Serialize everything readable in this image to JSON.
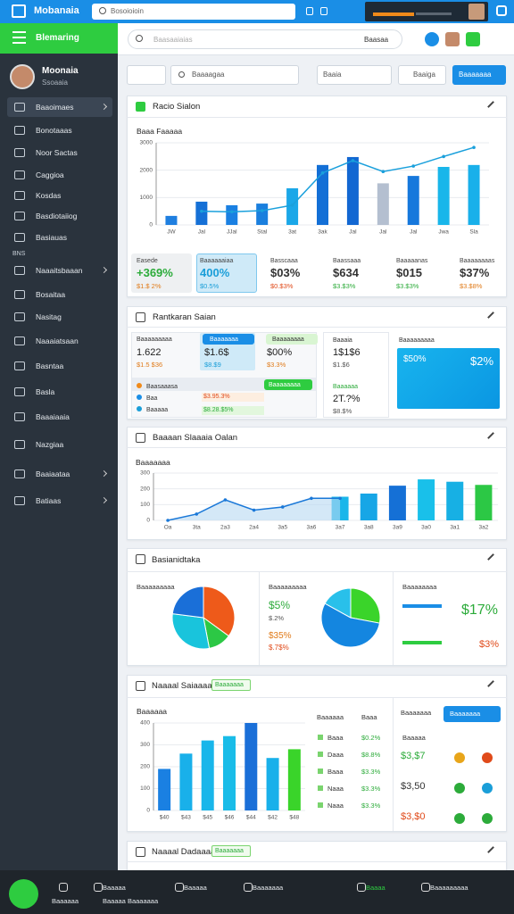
{
  "topbar": {
    "title": "Mobanaia",
    "search": "Bosoioioin"
  },
  "sidebar": {
    "header": "Blemaring",
    "user": {
      "name": "Moonaia",
      "role": "Ssoaaia"
    },
    "items": [
      "Baaoimaes",
      "Bonotaaas",
      "Noor Sactas",
      "Caggioa",
      "Kosdas",
      "Basdiotaiiog",
      "Basiauas",
      "Naaaitsbaaan",
      "Bosaitaa",
      "Nasitag",
      "Naaaiatsaan",
      "Basntaa",
      "Basla",
      "Baaaiaaia",
      "Nazgiaa",
      "Baaiaataa",
      "Batiaas"
    ],
    "section": "BNS"
  },
  "searchbar": {
    "placeholder": "Baasaaiaias",
    "filter": "Baasaa"
  },
  "toolbar": {
    "search": "Baaaagaa",
    "button1": "Baaia",
    "button2": "Baaiga",
    "primary": "Baaaaaaa"
  },
  "panels": [
    {
      "title": "Racio Sialon",
      "subtitle": "Baaa Faaaaa",
      "chart": {
        "categories": [
          "JW",
          "Jal",
          "JJal",
          "Stal",
          "3at",
          "3ak",
          "Jal",
          "Jal",
          "Jal",
          "Jwa",
          "Sla"
        ],
        "bars": [
          330,
          850,
          720,
          780,
          1340,
          2190,
          2480,
          1520,
          1790,
          2120,
          2190
        ],
        "colors": [
          "#1f7fe0",
          "#1570d6",
          "#1a80e2",
          "#1a7fde",
          "#1aa7e8",
          "#136fd6",
          "#1267d2",
          "#b4bfd0",
          "#1678dc",
          "#19b6ea",
          "#19b0ea"
        ],
        "line": [
          null,
          500,
          480,
          520,
          720,
          1900,
          2350,
          1950,
          2150,
          2500,
          2830
        ],
        "line_color": "#1aa0dc",
        "ylim": [
          0,
          3000
        ],
        "yticks": [
          0,
          1000,
          2000,
          3000
        ]
      },
      "stats": [
        {
          "label": "Easede",
          "value": "+369%",
          "sub": "$1.$ 2%"
        },
        {
          "label": "Baaaaaaiaa",
          "value": "400%",
          "sub": "$0.5%"
        },
        {
          "label": "Basscaaa",
          "value": "$03%",
          "sub": "$0.$3%"
        },
        {
          "label": "Baassaaa",
          "value": "$634",
          "sub": "$3.$3%"
        },
        {
          "label": "Baaaaanas",
          "value": "$015",
          "sub": "$3.$3%"
        },
        {
          "label": "Baaaaaaaas",
          "value": "$37%",
          "sub": "$3.$8%"
        }
      ]
    },
    {
      "title": "Rantkaran Saian",
      "cells": [
        {
          "label": "Baaaaaaaaa",
          "value": "1.622",
          "sub": "$1.5 $36"
        },
        {
          "label": "Baaaaaaa",
          "value": "$1.6$",
          "sub": "$8.$9"
        },
        {
          "label": "Baaaaaaaa",
          "value": "$00%",
          "sub": "$3.3%"
        }
      ],
      "list": {
        "items": [
          "Baasaaasa",
          "Baa",
          "Baaaaa"
        ],
        "badge": "Baaaaaaaa",
        "values": [
          "$3.95.3%",
          "$8.28.$5%"
        ]
      },
      "middle": {
        "label": "Baaaia",
        "value": "1$1$6",
        "sub": "$1.$6",
        "label2": "Baaaaaa",
        "value2": "2T.?%",
        "sub2": "$8.$%"
      },
      "right": {
        "label": "Baaaaaaaaa",
        "value": "$50%",
        "value2": "$2%"
      }
    },
    {
      "title": "Baaaan Slaaaia Oalan",
      "subtitle": "Baaaaaaa",
      "chart": {
        "categories": [
          "Oa",
          "3ta",
          "2a3",
          "2a4",
          "3a5",
          "3a6",
          "3a7",
          "3a8",
          "3a9",
          "3a0",
          "3a1",
          "3a2"
        ],
        "line": [
          0,
          40,
          130,
          65,
          85,
          140,
          140,
          null,
          null,
          null,
          null,
          null
        ],
        "line_color": "#1a78d8",
        "bars": [
          null,
          null,
          null,
          null,
          null,
          null,
          150,
          170,
          220,
          260,
          245,
          225
        ],
        "colors": [
          null,
          null,
          null,
          null,
          null,
          null,
          "#19b6ea",
          "#17a6e6",
          "#1570d6",
          "#19c0ea",
          "#17b0e4",
          "#2cc845"
        ],
        "ylim": [
          0,
          300
        ],
        "yticks": [
          0,
          100,
          200,
          300
        ]
      }
    },
    {
      "title": "Basianidtaka",
      "col1": "Baaaaaaaaa",
      "col2": "Baaaaaaaaa",
      "col3": "Baaaaaaaa",
      "pies": [
        {
          "values": [
            35,
            12,
            30,
            23
          ],
          "colors": [
            "#ee5a1a",
            "#2cc845",
            "#19c4dc",
            "#1a6fd8"
          ]
        },
        {
          "values": [
            28,
            55,
            17
          ],
          "colors": [
            "#3ad42a",
            "#1486e0",
            "#29c0ea"
          ]
        }
      ],
      "texts": {
        "a": "$5%",
        "b": "$.2%",
        "c": "$35%",
        "d": "$.7$%",
        "e": "$17%",
        "f": "$3%"
      }
    },
    {
      "title": "Naaaal Saiaaaaaa",
      "tag": "Baaaaaaa",
      "subtitle": "Baaaaaa",
      "chart": {
        "categories": [
          "$40",
          "$43",
          "$45",
          "$46",
          "$44",
          "$42",
          "$48"
        ],
        "values": [
          190,
          260,
          320,
          340,
          400,
          240,
          280
        ],
        "colors": [
          "#1a80e2",
          "#19b0ea",
          "#19b6ea",
          "#19bce8",
          "#1a6fd8",
          "#19b0ea",
          "#3ad42a"
        ],
        "ylim": [
          0,
          400
        ],
        "yticks": [
          0,
          100,
          200,
          300,
          400
        ]
      },
      "table": {
        "headers": [
          "Baaaaaa",
          "Baaa"
        ],
        "rows": [
          [
            "Baaa",
            "$0.2%"
          ],
          [
            "Daaa",
            "$8.8%"
          ],
          [
            "Baaa",
            "$3.3%"
          ],
          [
            "Naaa",
            "$3.3%"
          ],
          [
            "Naaa",
            "$3.3%"
          ]
        ]
      },
      "side": {
        "label": "Baaaaaaa",
        "button": "Baaaaaaa",
        "sub": "Baaaaa",
        "rows": [
          "$3,$7",
          "$3,50",
          "$3,$0"
        ]
      }
    },
    {
      "title": "Naaaal Dadaaaan",
      "tag": "Baaaaaaa"
    }
  ],
  "bottombar": {
    "items": [
      "Baaaaaa",
      "Baaaaa",
      "Baaaaa Baaaaaaa",
      "Baaaaa",
      "Baaaaaaa",
      "Baaaa",
      "Baaaaaaaaa"
    ]
  }
}
